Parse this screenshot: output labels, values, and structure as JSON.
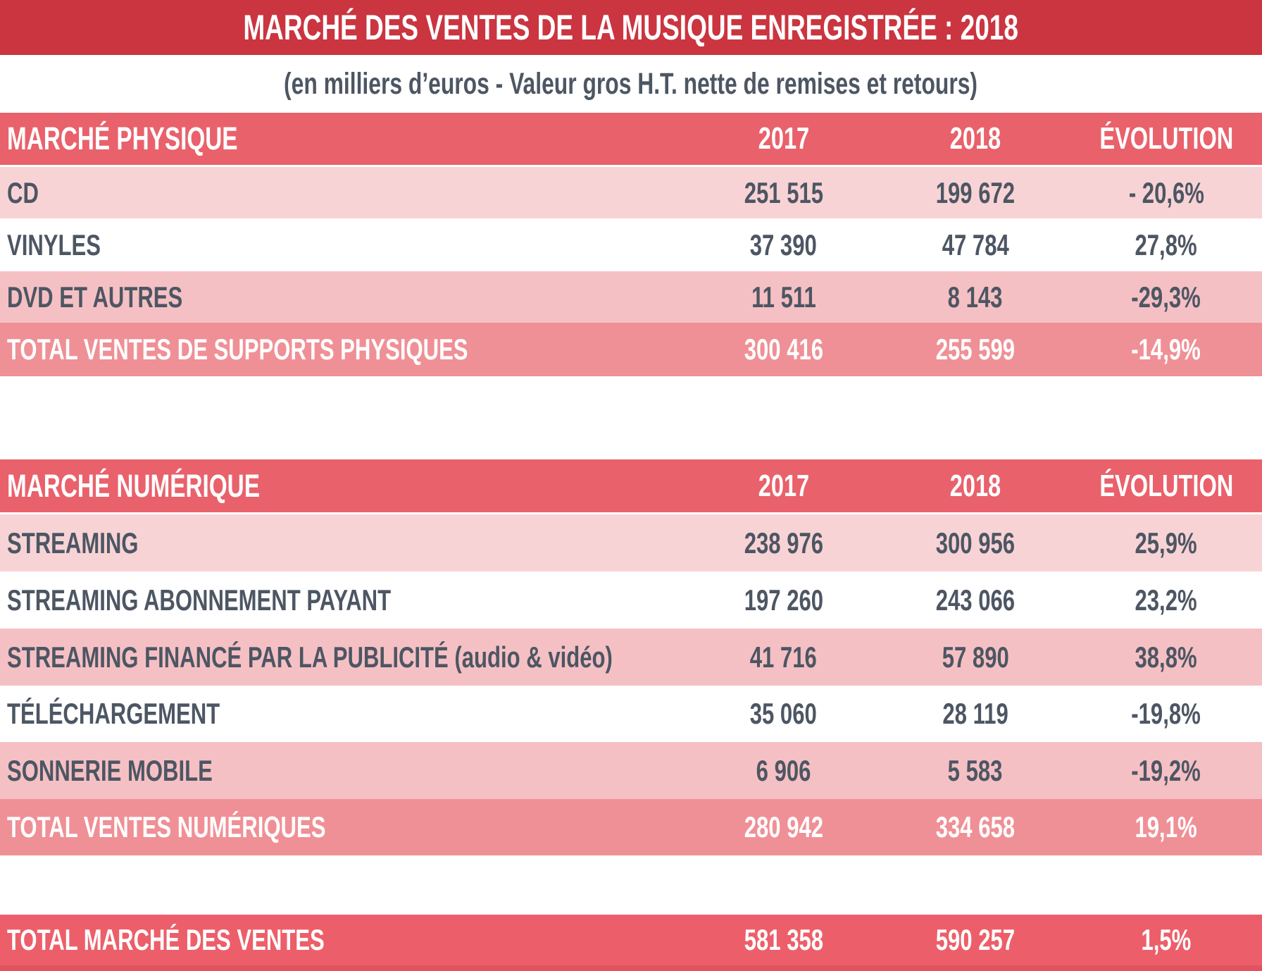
{
  "title_bar": {
    "text": "MARCHÉ DES VENTES DE LA MUSIQUE ENREGISTRÉE : 2018"
  },
  "subtitle": "(en milliers d’euros - Valeur gros H.T. nette de remises et retours)",
  "columns": {
    "year_2017": "2017",
    "year_2018": "2018",
    "evolution": "ÉVOLUTION"
  },
  "physical": {
    "header": "MARCHÉ PHYSIQUE",
    "rows": [
      {
        "label": "CD",
        "v2017": "251 515",
        "v2018": "199 672",
        "evol": "- 20,6%"
      },
      {
        "label": "VINYLES",
        "v2017": "37 390",
        "v2018": "47 784",
        "evol": "27,8%"
      },
      {
        "label": "DVD ET AUTRES",
        "v2017": "11 511",
        "v2018": "8 143",
        "evol": "-29,3%"
      }
    ],
    "total": {
      "label": "TOTAL VENTES DE SUPPORTS PHYSIQUES",
      "v2017": "300 416",
      "v2018": "255 599",
      "evol": "-14,9%"
    }
  },
  "digital": {
    "header": "MARCHÉ NUMÉRIQUE",
    "rows": [
      {
        "label": "STREAMING",
        "v2017": "238 976",
        "v2018": "300 956",
        "evol": "25,9%"
      },
      {
        "label": "STREAMING ABONNEMENT PAYANT",
        "v2017": "197 260",
        "v2018": "243 066",
        "evol": "23,2%"
      },
      {
        "label": "STREAMING FINANCÉ PAR LA PUBLICITÉ (audio & vidéo)",
        "v2017": "41 716",
        "v2018": "57 890",
        "evol": "38,8%"
      },
      {
        "label": "TÉLÉCHARGEMENT",
        "v2017": "35 060",
        "v2018": "28 119",
        "evol": "-19,8%"
      },
      {
        "label": "SONNERIE MOBILE",
        "v2017": "6 906",
        "v2018": "5 583",
        "evol": "-19,2%"
      }
    ],
    "total": {
      "label": "TOTAL VENTES NUMÉRIQUES",
      "v2017": "280 942",
      "v2018": "334 658",
      "evol": "19,1%"
    }
  },
  "grand_total": {
    "label": "TOTAL MARCHÉ DES VENTES",
    "v2017": "581 358",
    "v2018": "590 257",
    "evol": "1,5%"
  },
  "colors": {
    "title_red": "#ca3540",
    "header_red": "#e9616b",
    "row_pink_light": "#f8d3d5",
    "row_pink_medium": "#f5c0c4",
    "total_salmon": "#ef9096",
    "grand_total_red": "#ec5f6a",
    "bottom_bar_red": "#e2525e",
    "text_dark": "#4d5663",
    "text_light": "#ffffff"
  },
  "chart_data": {
    "type": "table",
    "title": "MARCHÉ DES VENTES DE LA MUSIQUE ENREGISTRÉE : 2018",
    "subtitle": "(en milliers d’euros - Valeur gros H.T. nette de remises et retours)",
    "columns": [
      "",
      "2017",
      "2018",
      "ÉVOLUTION"
    ],
    "sections": [
      {
        "header": "MARCHÉ PHYSIQUE",
        "rows": [
          [
            "CD",
            251515,
            199672,
            "-20,6%"
          ],
          [
            "VINYLES",
            37390,
            47784,
            "27,8%"
          ],
          [
            "DVD ET AUTRES",
            11511,
            8143,
            "-29,3%"
          ]
        ],
        "total": [
          "TOTAL VENTES DE SUPPORTS PHYSIQUES",
          300416,
          255599,
          "-14,9%"
        ]
      },
      {
        "header": "MARCHÉ NUMÉRIQUE",
        "rows": [
          [
            "STREAMING",
            238976,
            300956,
            "25,9%"
          ],
          [
            "STREAMING ABONNEMENT PAYANT",
            197260,
            243066,
            "23,2%"
          ],
          [
            "STREAMING FINANCÉ PAR LA PUBLICITÉ (audio & vidéo)",
            41716,
            57890,
            "38,8%"
          ],
          [
            "TÉLÉCHARGEMENT",
            35060,
            28119,
            "-19,8%"
          ],
          [
            "SONNERIE MOBILE",
            6906,
            5583,
            "-19,2%"
          ]
        ],
        "total": [
          "TOTAL VENTES NUMÉRIQUES",
          280942,
          334658,
          "19,1%"
        ]
      }
    ],
    "grand_total": [
      "TOTAL MARCHÉ DES VENTES",
      581358,
      590257,
      "1,5%"
    ]
  }
}
